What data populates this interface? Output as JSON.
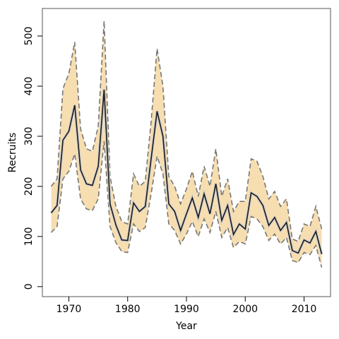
{
  "chart_data": {
    "type": "line",
    "title": "",
    "xlabel": "Year",
    "ylabel": "Recruits",
    "xlim": [
      1965.5,
      2014.5
    ],
    "ylim": [
      -20,
      555
    ],
    "x_ticks": [
      1970,
      1980,
      1990,
      2000,
      2010
    ],
    "y_ticks": [
      0,
      100,
      200,
      300,
      400,
      500
    ],
    "grid": false,
    "legend": "none",
    "colors": {
      "band": "#f7deb0",
      "bound_line": "#777777",
      "median_line": "#1a1a1a"
    },
    "x": [
      1967,
      1968,
      1969,
      1970,
      1971,
      1972,
      1973,
      1974,
      1975,
      1976,
      1977,
      1978,
      1979,
      1980,
      1981,
      1982,
      1983,
      1984,
      1985,
      1986,
      1987,
      1988,
      1989,
      1990,
      1991,
      1992,
      1993,
      1994,
      1995,
      1996,
      1997,
      1998,
      1999,
      2000,
      2001,
      2002,
      2003,
      2004,
      2005,
      2006,
      2007,
      2008,
      2009,
      2010,
      2011,
      2012,
      2013
    ],
    "series": [
      {
        "role": "upper",
        "values": [
          200,
          215,
          395,
          425,
          488,
          315,
          275,
          270,
          320,
          530,
          220,
          160,
          130,
          125,
          225,
          200,
          210,
          330,
          475,
          400,
          220,
          200,
          165,
          195,
          230,
          180,
          240,
          200,
          275,
          180,
          215,
          150,
          170,
          170,
          255,
          250,
          220,
          175,
          190,
          160,
          175,
          95,
          90,
          125,
          120,
          160,
          115
        ]
      },
      {
        "role": "median",
        "values": [
          147,
          162,
          292,
          310,
          362,
          233,
          205,
          202,
          240,
          393,
          165,
          123,
          93,
          92,
          167,
          150,
          160,
          255,
          350,
          300,
          165,
          150,
          112,
          145,
          177,
          138,
          185,
          145,
          205,
          132,
          162,
          104,
          125,
          115,
          187,
          180,
          162,
          122,
          138,
          112,
          128,
          72,
          67,
          93,
          87,
          110,
          65
        ]
      },
      {
        "role": "lower",
        "values": [
          108,
          120,
          215,
          230,
          265,
          175,
          155,
          152,
          175,
          290,
          120,
          88,
          70,
          68,
          125,
          110,
          118,
          185,
          260,
          225,
          125,
          112,
          85,
          105,
          130,
          100,
          135,
          108,
          150,
          98,
          118,
          78,
          90,
          85,
          140,
          135,
          120,
          92,
          105,
          85,
          98,
          52,
          48,
          68,
          64,
          82,
          38
        ]
      }
    ]
  }
}
